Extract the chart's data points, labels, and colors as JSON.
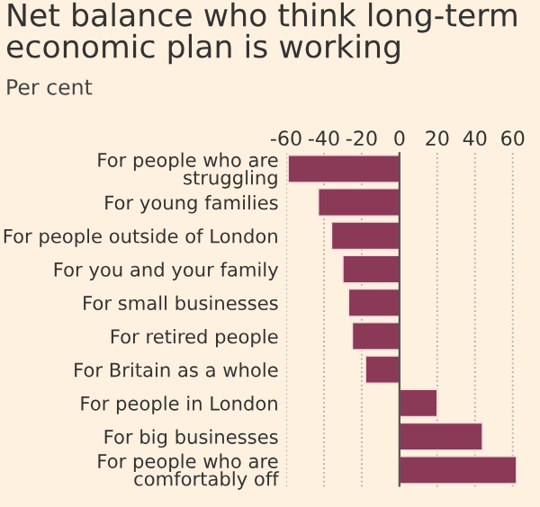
{
  "chart_data": {
    "type": "bar",
    "orientation": "horizontal",
    "title": "Net balance who think long-term economic plan is working",
    "subtitle": "Per cent",
    "categories": [
      "For people who are struggling",
      "For young families",
      "For people outside of London",
      "For you and your family",
      "For small businesses",
      "For retired people",
      "For Britain as a whole",
      "For people in London",
      "For big businesses",
      "For people who are comfortably off"
    ],
    "values": [
      -59,
      -43,
      -36,
      -30,
      -27,
      -25,
      -18,
      20,
      44,
      62
    ],
    "color": "#8a3a56",
    "xlim": [
      -60,
      63
    ],
    "xticks": [
      -60,
      -40,
      -20,
      0,
      20,
      40,
      60
    ],
    "grid": "x"
  }
}
